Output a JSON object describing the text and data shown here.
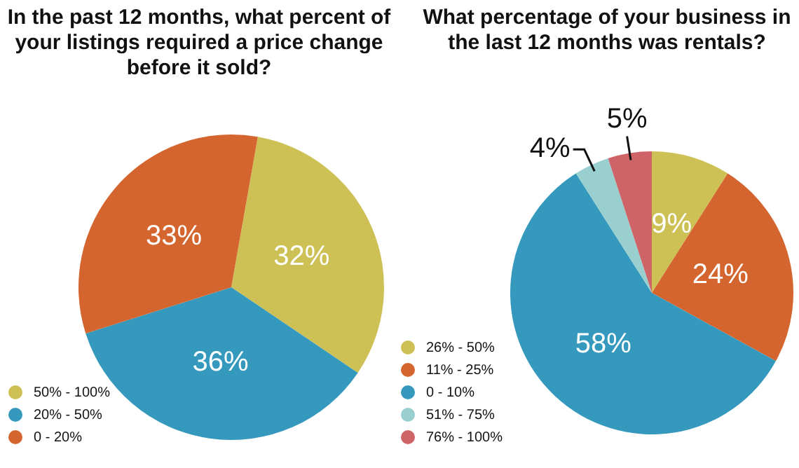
{
  "chart_data": [
    {
      "type": "pie",
      "title": "In the past 12 months, what percent of your listings required a price change before it sold?",
      "categories": [
        "50% - 100%",
        "20% - 50%",
        "0 - 20%"
      ],
      "values": [
        32,
        36,
        33
      ],
      "value_labels": [
        "32%",
        "36%",
        "33%"
      ],
      "colors": [
        "#cdc156",
        "#3499bd",
        "#d4652f"
      ],
      "legend": "bottom left"
    },
    {
      "type": "pie",
      "title": "What percentage of your business in the last 12 months was rentals?",
      "categories": [
        "26% - 50%",
        "11% - 25%",
        "0 - 10%",
        "51% - 75%",
        "76% - 100%"
      ],
      "values": [
        9,
        24,
        58,
        4,
        5
      ],
      "value_labels": [
        "9%",
        "24%",
        "58%",
        "4%",
        "5%"
      ],
      "colors": [
        "#cdc156",
        "#d4652f",
        "#3499bd",
        "#99cfcf",
        "#cf6468"
      ],
      "legend": "bottom left"
    }
  ]
}
